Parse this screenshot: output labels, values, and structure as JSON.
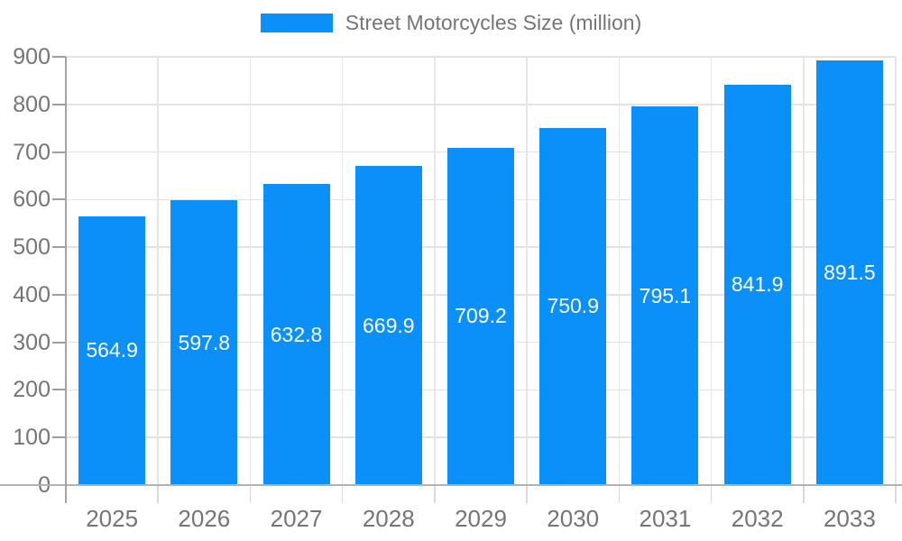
{
  "chart_data": {
    "type": "bar",
    "legend": "Street Motorcycles Size (million)",
    "categories": [
      "2025",
      "2026",
      "2027",
      "2028",
      "2029",
      "2030",
      "2031",
      "2032",
      "2033"
    ],
    "values": [
      564.9,
      597.8,
      632.8,
      669.9,
      709.2,
      750.9,
      795.1,
      841.9,
      891.5
    ],
    "value_labels": [
      "564.9",
      "597.8",
      "632.8",
      "669.9",
      "709.2",
      "750.9",
      "795.1",
      "841.9",
      "891.5"
    ],
    "y_ticks": [
      "0",
      "100",
      "200",
      "300",
      "400",
      "500",
      "600",
      "700",
      "800",
      "900"
    ],
    "ylim": [
      0,
      900
    ],
    "ytick_step": 100,
    "grid": "both",
    "legend_position": "top-center",
    "colors": {
      "bar": "#0a90f8",
      "value_text": "#ffffff",
      "axis_text": "#757575",
      "gridline": "#e2e2e2",
      "axis_line": "#a4a4a4",
      "baseline": "#b2b2b2",
      "background": "#ffffff"
    }
  }
}
